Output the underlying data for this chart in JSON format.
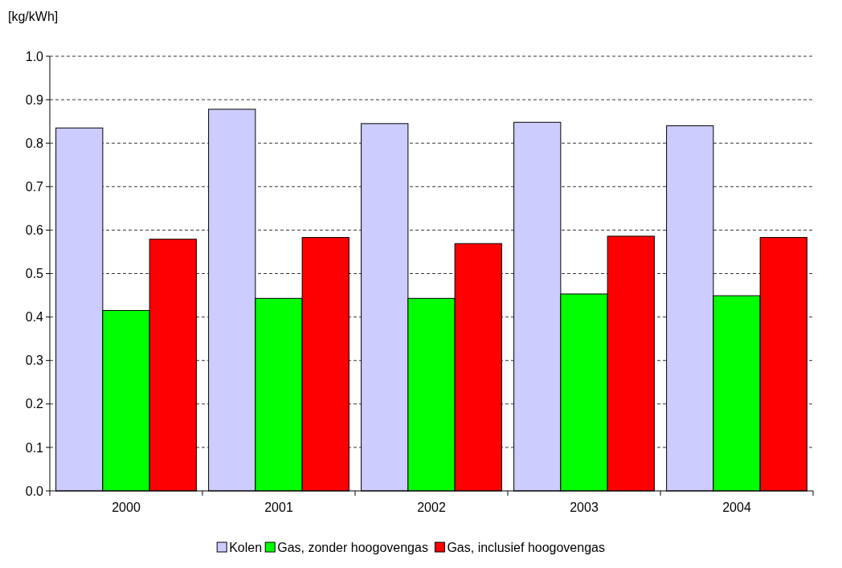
{
  "chart_data": {
    "type": "bar",
    "ylabel": "[kg/kWh]",
    "categories": [
      "2000",
      "2001",
      "2002",
      "2003",
      "2004"
    ],
    "series": [
      {
        "name": "Kolen",
        "color": "#ccccff",
        "values": [
          0.835,
          0.878,
          0.845,
          0.848,
          0.84
        ]
      },
      {
        "name": "Gas, zonder hoogovengas",
        "color": "#00ff00",
        "values": [
          0.415,
          0.443,
          0.443,
          0.453,
          0.449
        ]
      },
      {
        "name": "Gas, inclusief hoogovengas",
        "color": "#ff0000",
        "values": [
          0.579,
          0.583,
          0.569,
          0.586,
          0.583
        ]
      }
    ],
    "ylim": [
      0,
      1
    ],
    "yticks": [
      {
        "value": 0,
        "label": "0.0"
      },
      0.1,
      0.2,
      0.3,
      0.4,
      0.5,
      0.6,
      0.7,
      0.8,
      0.9,
      {
        "value": 1,
        "label": "1.0"
      }
    ],
    "grid": "y",
    "legend": "bottom"
  }
}
